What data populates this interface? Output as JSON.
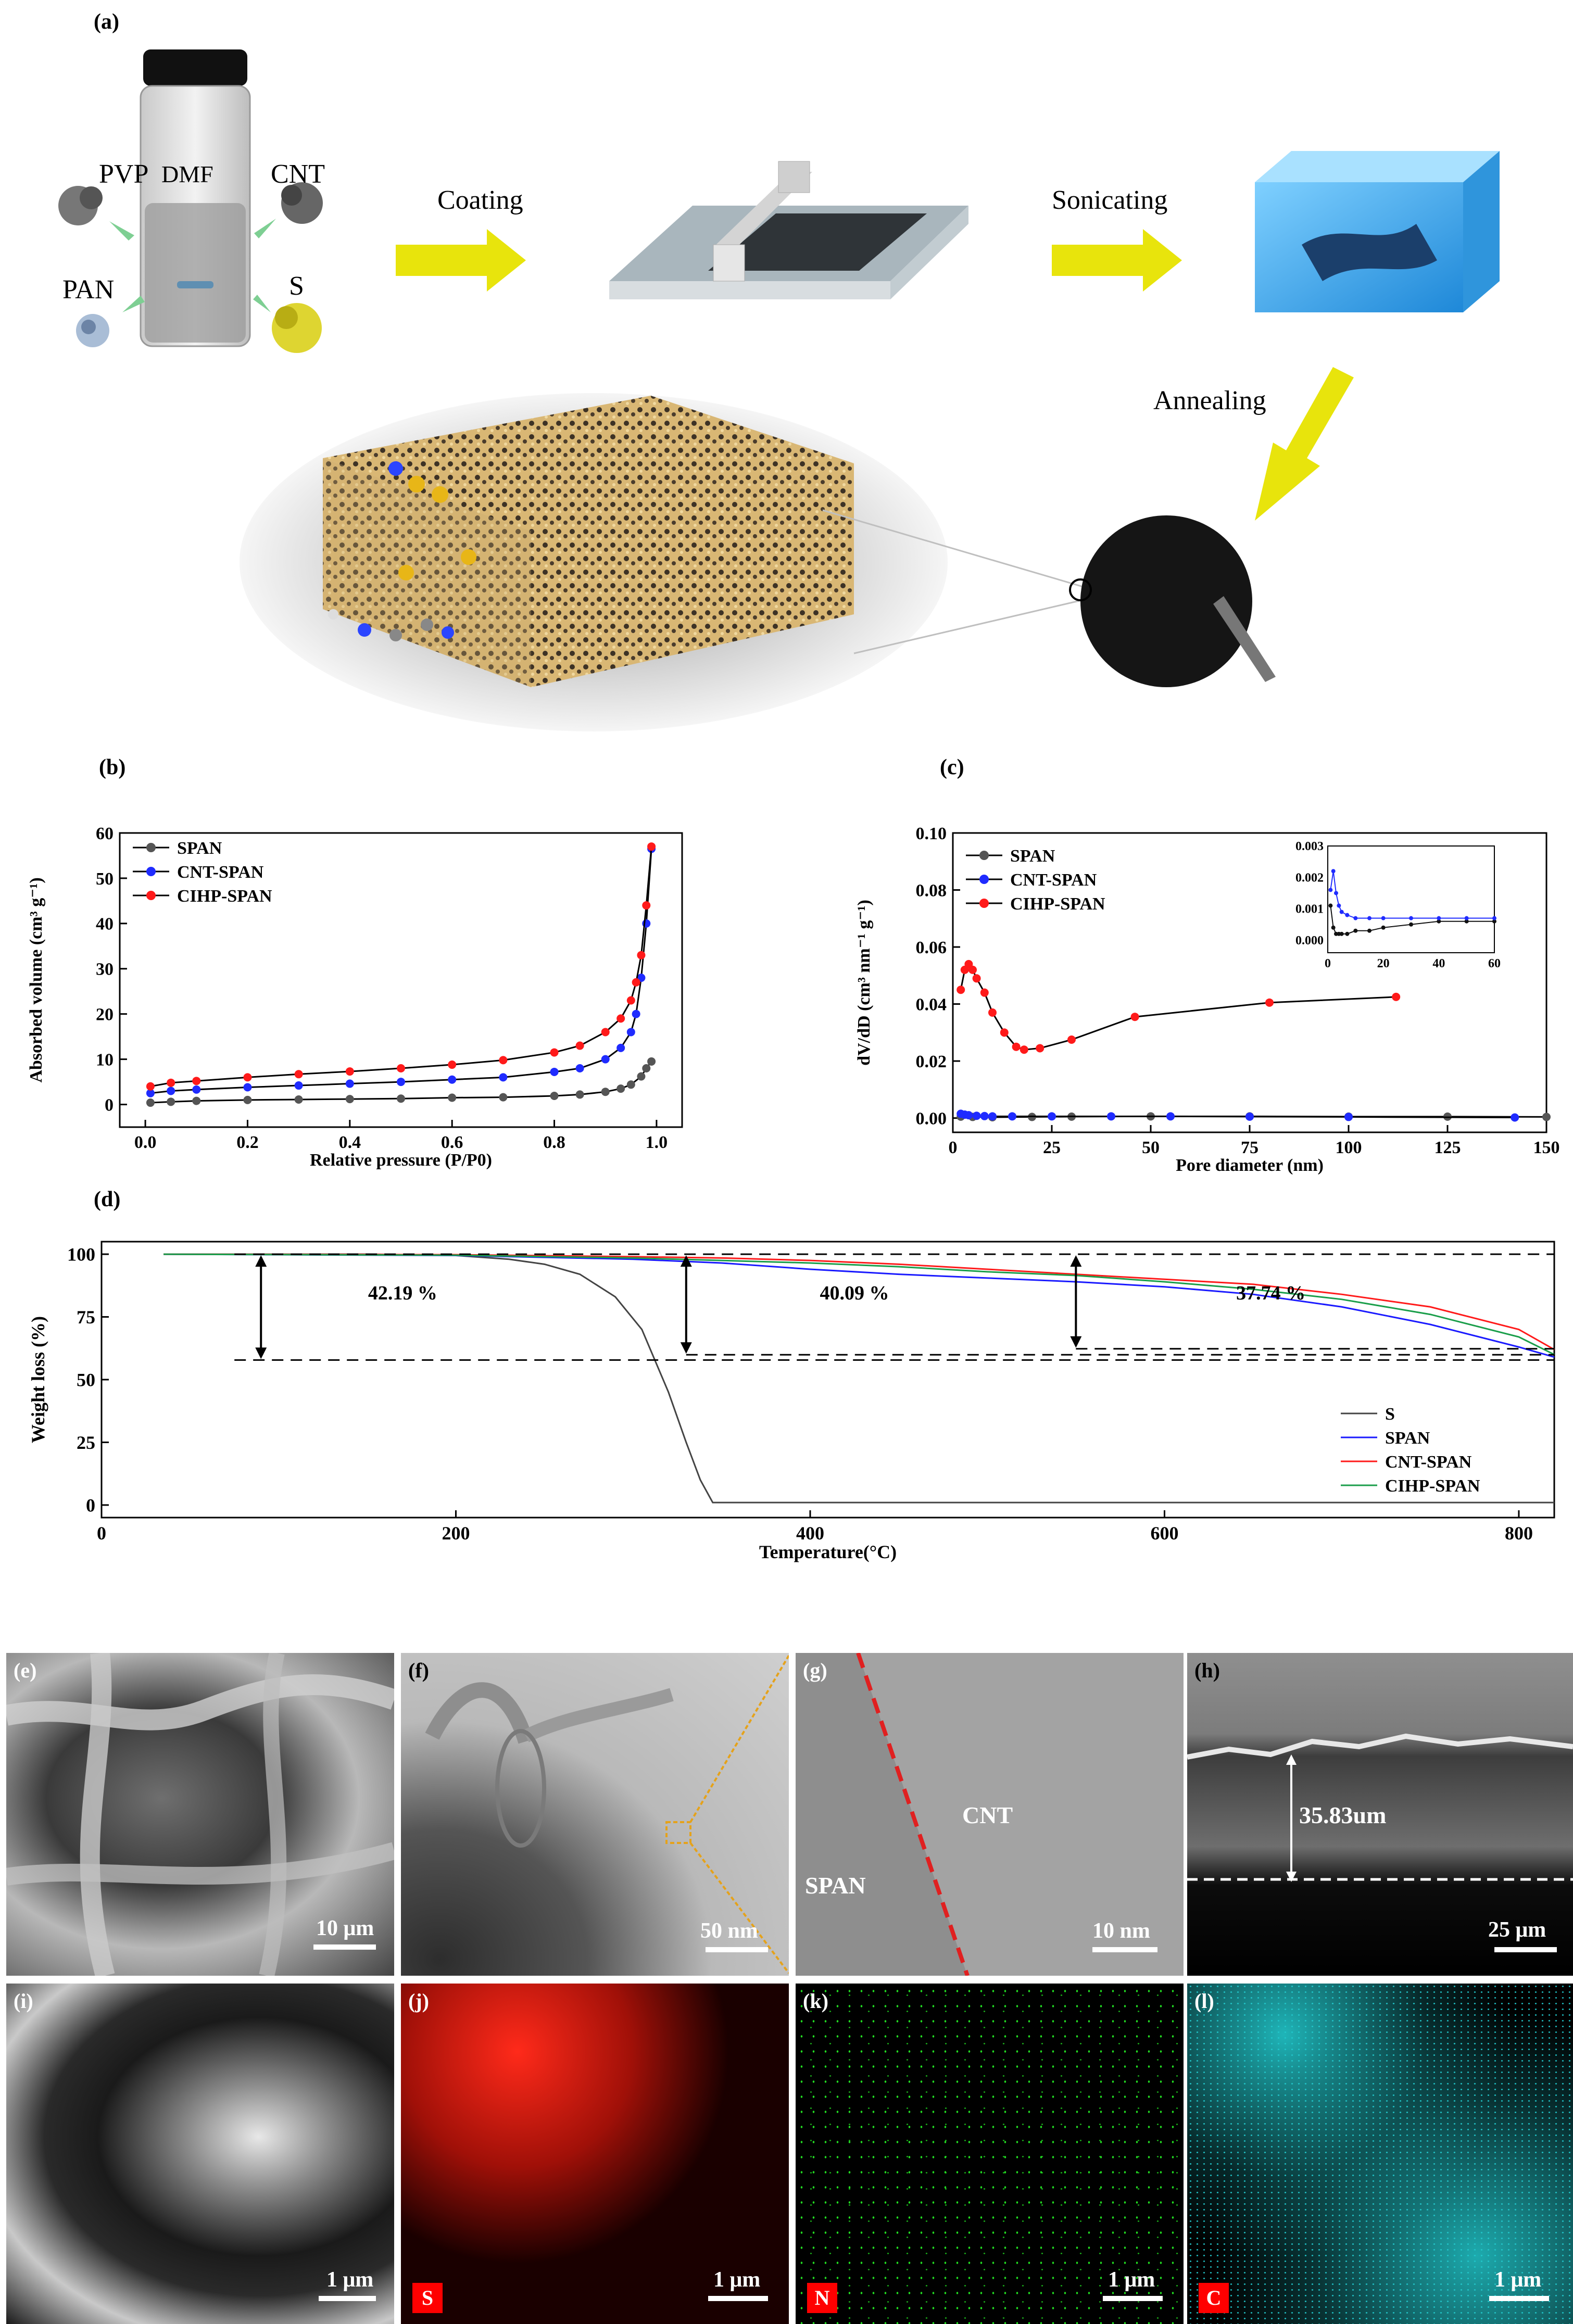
{
  "schematic": {
    "panel_label": "(a)",
    "reagents": [
      "PVP",
      "CNT",
      "PAN",
      "S"
    ],
    "solvent": "DMF",
    "steps": [
      "Coating",
      "Sonicating",
      "Annealing"
    ]
  },
  "panels": {
    "b": "(b)",
    "c": "(c)",
    "d": "(d)",
    "e": "(e)",
    "f": "(f)",
    "g": "(g)",
    "h": "(h)",
    "i": "(i)",
    "j": "(j)",
    "k": "(k)",
    "l": "(l)"
  },
  "micrographs": {
    "e": {
      "scale": "10 μm"
    },
    "f": {
      "scale": "50 nm"
    },
    "g": {
      "scale": "10 nm",
      "label_left": "SPAN",
      "label_right": "CNT"
    },
    "h": {
      "scale": "25 μm",
      "thickness": "35.83um"
    },
    "i": {
      "scale": "1 μm"
    },
    "j": {
      "scale": "1 μm",
      "element": "S",
      "color": "#ff1a10"
    },
    "k": {
      "scale": "1 μm",
      "element": "N",
      "color": "#22dd22"
    },
    "l": {
      "scale": "1 μm",
      "element": "C",
      "color": "#22c8cc"
    }
  },
  "chart_data": [
    {
      "id": "b",
      "type": "line",
      "title": "",
      "xlabel": "Relative pressure (P/P0)",
      "ylabel": "Absorbed volume (cm³ g⁻¹)",
      "xlim": [
        -0.05,
        1.05
      ],
      "ylim": [
        -5,
        60
      ],
      "xticks": [
        0.0,
        0.2,
        0.4,
        0.6,
        0.8,
        1.0
      ],
      "xticklabels": [
        "0.0",
        "0.2",
        "0.4",
        "0.6",
        "0.8",
        "1.0"
      ],
      "yticks": [
        0,
        10,
        20,
        30,
        40,
        50,
        60
      ],
      "yticklabels": [
        "0",
        "10",
        "20",
        "30",
        "40",
        "50",
        "60"
      ],
      "legend_position": "top-left",
      "series": [
        {
          "name": "SPAN",
          "color": "#555555",
          "x": [
            0.01,
            0.05,
            0.1,
            0.2,
            0.3,
            0.4,
            0.5,
            0.6,
            0.7,
            0.8,
            0.85,
            0.9,
            0.93,
            0.95,
            0.97,
            0.98,
            0.99
          ],
          "y": [
            0.4,
            0.6,
            0.8,
            1.0,
            1.1,
            1.2,
            1.3,
            1.5,
            1.6,
            1.9,
            2.2,
            2.8,
            3.5,
            4.4,
            6.2,
            8.0,
            9.5
          ]
        },
        {
          "name": "CNT-SPAN",
          "color": "#1f2bff",
          "x": [
            0.01,
            0.05,
            0.1,
            0.2,
            0.3,
            0.4,
            0.5,
            0.6,
            0.7,
            0.8,
            0.85,
            0.9,
            0.93,
            0.95,
            0.96,
            0.97,
            0.98,
            0.99
          ],
          "y": [
            2.5,
            3.0,
            3.3,
            3.8,
            4.2,
            4.6,
            5.0,
            5.5,
            6.0,
            7.2,
            8.0,
            10.0,
            12.5,
            16.0,
            20.0,
            28.0,
            40.0,
            56.5
          ]
        },
        {
          "name": "CIHP-SPAN",
          "color": "#ff1a1a",
          "x": [
            0.01,
            0.05,
            0.1,
            0.2,
            0.3,
            0.4,
            0.5,
            0.6,
            0.7,
            0.8,
            0.85,
            0.9,
            0.93,
            0.95,
            0.96,
            0.97,
            0.98,
            0.99
          ],
          "y": [
            4.0,
            4.8,
            5.2,
            6.0,
            6.7,
            7.3,
            8.0,
            8.8,
            9.8,
            11.5,
            13.0,
            16.0,
            19.0,
            23.0,
            27.0,
            33.0,
            44.0,
            57.0
          ]
        }
      ]
    },
    {
      "id": "c",
      "type": "line",
      "title": "",
      "xlabel": "Pore diameter (nm)",
      "ylabel": "dV/dD (cm³ nm⁻¹ g⁻¹)",
      "xlim": [
        0,
        150
      ],
      "ylim": [
        -0.005,
        0.1
      ],
      "xticks": [
        0,
        25,
        50,
        75,
        100,
        125,
        150
      ],
      "xticklabels": [
        "0",
        "25",
        "50",
        "75",
        "100",
        "125",
        "150"
      ],
      "yticks": [
        0.0,
        0.02,
        0.04,
        0.06,
        0.08,
        0.1
      ],
      "yticklabels": [
        "0.00",
        "0.02",
        "0.04",
        "0.06",
        "0.08",
        "0.10"
      ],
      "legend_position": "top-left",
      "series": [
        {
          "name": "SPAN",
          "color": "#555555",
          "x": [
            2,
            5,
            10,
            20,
            30,
            50,
            75,
            100,
            125,
            150
          ],
          "y": [
            0.0005,
            0.0004,
            0.0003,
            0.0004,
            0.0005,
            0.0006,
            0.0006,
            0.0005,
            0.0005,
            0.0004
          ]
        },
        {
          "name": "CNT-SPAN",
          "color": "#1f2bff",
          "x": [
            2,
            3,
            4,
            6,
            8,
            10,
            15,
            25,
            40,
            55,
            75,
            100,
            142
          ],
          "y": [
            0.0015,
            0.0012,
            0.001,
            0.0008,
            0.0007,
            0.0006,
            0.0006,
            0.0006,
            0.0006,
            0.0006,
            0.0005,
            0.0004,
            0.0002
          ]
        },
        {
          "name": "CIHP-SPAN",
          "color": "#ff1a1a",
          "x": [
            2,
            3,
            4,
            5,
            6,
            8,
            10,
            13,
            16,
            18,
            22,
            30,
            46,
            80,
            112
          ],
          "y": [
            0.045,
            0.052,
            0.054,
            0.052,
            0.049,
            0.044,
            0.037,
            0.03,
            0.025,
            0.024,
            0.0245,
            0.0275,
            0.0355,
            0.0405,
            0.0425
          ]
        }
      ],
      "inset": {
        "xlim": [
          0,
          60
        ],
        "ylim": [
          -0.0004,
          0.003
        ],
        "xticks": [
          0,
          20,
          40,
          60
        ],
        "xticklabels": [
          "0",
          "20",
          "40",
          "60"
        ],
        "yticks": [
          0.0,
          0.001,
          0.002,
          0.003
        ],
        "yticklabels": [
          "0.000",
          "0.001",
          "0.002",
          "0.003"
        ],
        "series": [
          {
            "name": "SPAN",
            "color": "#111111",
            "x": [
              1,
              2,
              3,
              4,
              5,
              7,
              10,
              15,
              20,
              30,
              40,
              50,
              60
            ],
            "y": [
              0.0011,
              0.0004,
              0.0002,
              0.0002,
              0.0002,
              0.0002,
              0.0003,
              0.0003,
              0.0004,
              0.0005,
              0.0006,
              0.0006,
              0.0006
            ]
          },
          {
            "name": "CNT-SPAN",
            "color": "#1f2bff",
            "x": [
              1,
              2,
              3,
              4,
              5,
              7,
              10,
              15,
              20,
              30,
              40,
              50,
              60
            ],
            "y": [
              0.0016,
              0.0022,
              0.0015,
              0.0011,
              0.0009,
              0.0008,
              0.0007,
              0.0007,
              0.0007,
              0.0007,
              0.0007,
              0.0007,
              0.0007
            ]
          }
        ]
      }
    },
    {
      "id": "d",
      "type": "line",
      "title": "",
      "xlabel": "Temperature(°C)",
      "ylabel": "Weight loss (%)",
      "xlim": [
        0,
        820
      ],
      "ylim": [
        -5,
        105
      ],
      "xticks": [
        0,
        200,
        400,
        600,
        800
      ],
      "xticklabels": [
        "0",
        "200",
        "400",
        "600",
        "800"
      ],
      "yticks": [
        0,
        25,
        50,
        75,
        100
      ],
      "yticklabels": [
        "0",
        "25",
        "50",
        "75",
        "100"
      ],
      "legend_position": "bottom-right",
      "annotations": [
        "42.19 %",
        "40.09 %",
        "37.74 %"
      ],
      "series": [
        {
          "name": "S",
          "color": "#444444",
          "x": [
            35,
            150,
            200,
            230,
            250,
            270,
            290,
            305,
            320,
            330,
            338,
            345,
            400,
            600,
            820
          ],
          "y": [
            100,
            100,
            99.5,
            98,
            96,
            92,
            83,
            70,
            45,
            25,
            10,
            1,
            1,
            1,
            1
          ]
        },
        {
          "name": "SPAN",
          "color": "#1a1aff",
          "x": [
            35,
            200,
            300,
            350,
            400,
            450,
            500,
            550,
            600,
            650,
            700,
            750,
            800,
            820
          ],
          "y": [
            100,
            99.5,
            98,
            96.5,
            94,
            92,
            90.5,
            89,
            87,
            84,
            79,
            72,
            63,
            59
          ]
        },
        {
          "name": "CNT-SPAN",
          "color": "#ff1a1a",
          "x": [
            35,
            200,
            300,
            350,
            400,
            450,
            500,
            550,
            600,
            650,
            700,
            750,
            800,
            820
          ],
          "y": [
            100,
            99.8,
            99,
            98.5,
            97.5,
            96,
            94,
            92,
            90,
            88,
            84,
            79,
            70,
            62
          ]
        },
        {
          "name": "CIHP-SPAN",
          "color": "#1a9e4a",
          "x": [
            35,
            200,
            300,
            350,
            400,
            450,
            500,
            550,
            600,
            650,
            700,
            750,
            800,
            820
          ],
          "y": [
            100,
            99.6,
            98.5,
            97.5,
            96.5,
            95,
            93,
            91.5,
            89,
            86,
            82,
            76,
            67,
            60
          ]
        }
      ]
    }
  ]
}
